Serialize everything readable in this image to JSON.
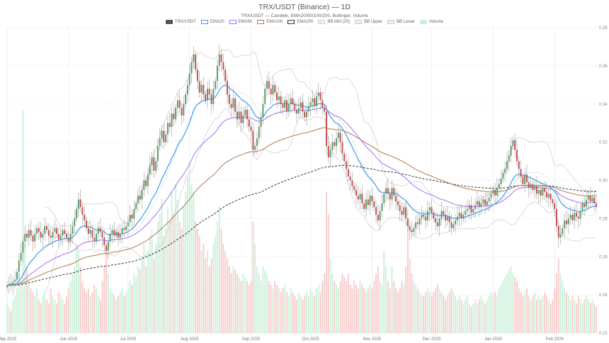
{
  "chart_data": {
    "type": "candlestick",
    "title": "TRX/USDT (Binance) — 1D",
    "subtitle": "TRX/USDT — Candele, EMA20/50/100/200, Bollinger, Volume",
    "interval": "1D",
    "x_start": "2025-05-01",
    "ylim": [
      0.22,
      0.38
    ],
    "yticks": [
      "0.22",
      "0.24",
      "0.26",
      "0.28",
      "0.30",
      "0.32",
      "0.34",
      "0.36",
      "0.38"
    ],
    "xticks": [
      {
        "label": "May 2025",
        "date": "2025-05-01"
      },
      {
        "label": "Jun 2025",
        "date": "2025-06-01"
      },
      {
        "label": "Jul 2025",
        "date": "2025-07-01"
      },
      {
        "label": "Aug 2025",
        "date": "2025-08-01"
      },
      {
        "label": "Sep 2025",
        "date": "2025-09-01"
      },
      {
        "label": "Oct 2025",
        "date": "2025-10-01"
      },
      {
        "label": "Nov 2025",
        "date": "2025-11-01"
      },
      {
        "label": "Dec 2025",
        "date": "2025-12-01"
      },
      {
        "label": "Jan 2026",
        "date": "2026-01-01"
      },
      {
        "label": "Feb 2026",
        "date": "2026-02-01"
      }
    ],
    "grid": true,
    "legend_placement": "top-center",
    "legend": [
      {
        "label": "TRX/USDT",
        "color": "#555555",
        "style": "fill"
      },
      {
        "label": "EMA20",
        "color": "#3d9bf0",
        "style": "line"
      },
      {
        "label": "EMA50",
        "color": "#a070f0",
        "style": "line"
      },
      {
        "label": "EMA100",
        "color": "#b07850",
        "style": "line"
      },
      {
        "label": "EMA200",
        "color": "#333333",
        "style": "dashed"
      },
      {
        "label": "BB Mid (20)",
        "color": "#bbbbbb",
        "style": "dotted"
      },
      {
        "label": "BB Upper",
        "color": "#cccccc",
        "style": "line"
      },
      {
        "label": "BB Lower",
        "color": "#cccccc",
        "style": "line"
      },
      {
        "label": "Volume",
        "color": "#c8f0d8",
        "style": "fill"
      }
    ],
    "colors": {
      "up": "#5a9a6e",
      "down": "#c0504d",
      "vol_up": "#c8f0d8",
      "vol_down": "#f8c8c8"
    },
    "close": [
      245,
      246,
      245,
      247,
      248,
      252,
      258,
      262,
      268,
      272,
      270,
      274,
      271,
      268,
      272,
      275,
      273,
      270,
      272,
      276,
      274,
      271,
      270,
      273,
      275,
      272,
      269,
      271,
      274,
      272,
      270,
      268,
      272,
      276,
      280,
      285,
      290,
      286,
      282,
      279,
      275,
      272,
      274,
      270,
      268,
      272,
      275,
      273,
      270,
      266,
      263,
      268,
      272,
      274,
      271,
      273,
      270,
      272,
      275,
      274,
      276,
      278,
      282,
      280,
      285,
      288,
      292,
      290,
      295,
      300,
      297,
      303,
      308,
      312,
      305,
      310,
      318,
      322,
      326,
      320,
      324,
      330,
      328,
      335,
      332,
      338,
      342,
      338,
      334,
      340,
      345,
      350,
      356,
      362,
      366,
      358,
      352,
      346,
      350,
      345,
      342,
      348,
      345,
      340,
      348,
      352,
      360,
      366,
      362,
      358,
      352,
      345,
      340,
      338,
      343,
      336,
      332,
      336,
      330,
      334,
      337,
      332,
      328,
      326,
      316,
      318,
      322,
      328,
      333,
      340,
      348,
      352,
      348,
      345,
      350,
      346,
      342,
      344,
      340,
      338,
      342,
      336,
      340,
      343,
      340,
      337,
      335,
      338,
      341,
      336,
      333,
      336,
      339,
      341,
      343,
      339,
      344,
      346,
      342,
      338,
      336,
      318,
      312,
      316,
      320,
      318,
      322,
      325,
      320,
      314,
      310,
      306,
      302,
      300,
      297,
      295,
      292,
      290,
      293,
      288,
      285,
      290,
      287,
      292,
      289,
      286,
      282,
      279,
      284,
      288,
      293,
      296,
      293,
      290,
      296,
      292,
      289,
      287,
      284,
      282,
      286,
      280,
      276,
      274,
      273,
      275,
      278,
      277,
      280,
      282,
      281,
      279,
      284,
      286,
      283,
      280,
      278,
      276,
      280,
      284,
      282,
      279,
      281,
      278,
      275,
      277,
      279,
      281,
      283,
      280,
      282,
      284,
      285,
      287,
      283,
      285,
      287,
      289,
      286,
      288,
      290,
      287,
      289,
      291,
      293,
      295,
      292,
      296,
      298,
      301,
      304,
      306,
      310,
      313,
      318,
      321,
      316,
      310,
      306,
      302,
      298,
      303,
      299,
      296,
      298,
      295,
      297,
      293,
      295,
      292,
      296,
      294,
      291,
      293,
      290,
      288,
      285,
      276,
      270,
      272,
      275,
      279,
      277,
      280,
      282,
      279,
      283,
      281,
      280,
      284,
      288,
      286,
      290,
      292,
      289,
      291,
      288,
      286
    ],
    "close_unit": "0.001 USDT",
    "volume": [
      40,
      35,
      30,
      45,
      50,
      60,
      80,
      70,
      300,
      120,
      90,
      70,
      60,
      55,
      50,
      60,
      45,
      40,
      50,
      55,
      45,
      40,
      60,
      50,
      45,
      40,
      55,
      50,
      45,
      40,
      50,
      60,
      70,
      80,
      90,
      120,
      110,
      90,
      70,
      60,
      55,
      60,
      50,
      55,
      65,
      60,
      50,
      45,
      70,
      90,
      110,
      80,
      60,
      55,
      50,
      45,
      50,
      55,
      60,
      50,
      55,
      60,
      70,
      65,
      80,
      75,
      90,
      85,
      100,
      120,
      90,
      110,
      130,
      140,
      100,
      120,
      150,
      160,
      180,
      130,
      140,
      170,
      150,
      190,
      160,
      200,
      180,
      150,
      140,
      170,
      190,
      210,
      230,
      200,
      190,
      150,
      140,
      130,
      110,
      120,
      100,
      110,
      90,
      100,
      120,
      130,
      150,
      170,
      140,
      120,
      110,
      100,
      90,
      80,
      90,
      85,
      80,
      75,
      70,
      80,
      75,
      70,
      65,
      70,
      150,
      120,
      90,
      80,
      70,
      90,
      85,
      80,
      70,
      65,
      60,
      70,
      65,
      60,
      55,
      60,
      65,
      55,
      50,
      60,
      55,
      50,
      45,
      55,
      50,
      45,
      50,
      55,
      50,
      60,
      55,
      50,
      60,
      65,
      55,
      70,
      80,
      190,
      160,
      100,
      80,
      70,
      65,
      60,
      70,
      80,
      75,
      70,
      80,
      65,
      60,
      70,
      65,
      60,
      70,
      65,
      60,
      55,
      60,
      65,
      60,
      70,
      80,
      90,
      70,
      65,
      110,
      90,
      70,
      60,
      90,
      70,
      60,
      55,
      60,
      70,
      65,
      90,
      140,
      100,
      80,
      70,
      65,
      60,
      55,
      50,
      50,
      55,
      60,
      55,
      50,
      55,
      60,
      65,
      60,
      55,
      50,
      45,
      50,
      55,
      60,
      55,
      50,
      45,
      50,
      45,
      40,
      45,
      50,
      40,
      35,
      40,
      45,
      40,
      45,
      50,
      45,
      40,
      45,
      50,
      55,
      50,
      55,
      50,
      60,
      65,
      70,
      75,
      80,
      85,
      90,
      80,
      75,
      70,
      60,
      55,
      50,
      55,
      60,
      50,
      45,
      50,
      55,
      45,
      50,
      45,
      50,
      55,
      50,
      45,
      40,
      45,
      60,
      80,
      100,
      80,
      70,
      60,
      55,
      50,
      45,
      50,
      45,
      40,
      50,
      45,
      40,
      45,
      50,
      45,
      40,
      45,
      40,
      35
    ]
  }
}
